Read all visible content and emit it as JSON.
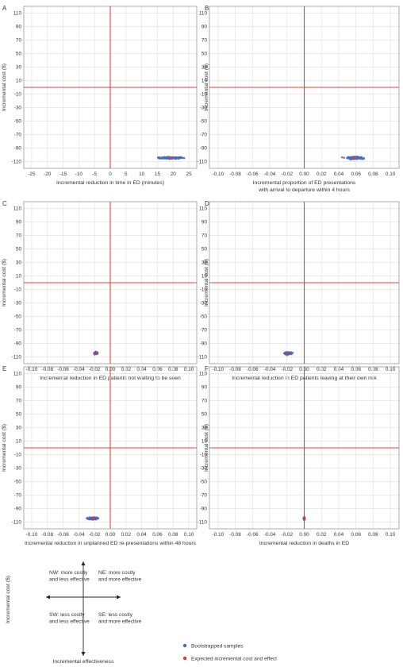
{
  "colors": {
    "sample": "#4a67c8",
    "expected": "#d63a3a",
    "axis_line": "#e0453a",
    "grid": "#e3e3e3",
    "panel_border": "#9a9a9a",
    "text": "#333333"
  },
  "chart_data": [
    {
      "panel": "A",
      "type": "scatter",
      "xlabel": [
        "Incremental reduction in time in ED (minutes)"
      ],
      "ylabel": "Incremental cost ($)",
      "xlim": [
        -27.5,
        27.5
      ],
      "ylim": [
        -120,
        120
      ],
      "xticks": [
        -25,
        -20,
        -15,
        -10,
        -5,
        0,
        5,
        10,
        15,
        20,
        25
      ],
      "xtick_labels": [
        "-25",
        "-20",
        "-15",
        "-10",
        "-5",
        "0",
        "5",
        "10",
        "15",
        "20",
        "25"
      ],
      "yticks": [
        110,
        90,
        70,
        50,
        30,
        10,
        -10,
        -30,
        -50,
        -70,
        -90,
        -110
      ],
      "ytick_labels": [
        "110",
        "90",
        "70",
        "50",
        "30",
        "10",
        "-10",
        "-30",
        "-50",
        "-70",
        "-90",
        "-110"
      ],
      "grid": true,
      "bootstrapped_samples": {
        "center": [
          19.5,
          -104.5
        ],
        "spread": [
          4.2,
          1.3
        ]
      },
      "expected": {
        "x": 19.5,
        "y": -104.5
      }
    },
    {
      "panel": "B",
      "type": "scatter",
      "xlabel": [
        "Incremental proportion of ED presentations",
        "with arrival to departure within 4 hours"
      ],
      "ylabel": "Incremental cost ($)",
      "xlim": [
        -0.11,
        0.11
      ],
      "ylim": [
        -120,
        120
      ],
      "xticks": [
        -0.1,
        -0.08,
        -0.06,
        -0.04,
        -0.02,
        0.0,
        0.02,
        0.04,
        0.06,
        0.08,
        0.1
      ],
      "xtick_labels": [
        "-0.10",
        "-0.08",
        "-0.06",
        "-0.04",
        "-0.02",
        "0.00",
        "0.02",
        "0.04",
        "0.06",
        "0.08",
        "0.10"
      ],
      "yticks": [
        110,
        90,
        70,
        50,
        30,
        10,
        -10,
        -30,
        -50,
        -70,
        -90,
        -110
      ],
      "ytick_labels": [
        "110",
        "90",
        "70",
        "50",
        "30",
        "10",
        "-10",
        "-30",
        "-50",
        "-70",
        "-90",
        "-110"
      ],
      "grid": true,
      "bootstrapped_samples": {
        "center": [
          0.058,
          -104.5
        ],
        "spread": [
          0.009,
          1.6
        ]
      },
      "expected": {
        "x": 0.058,
        "y": -104.5
      }
    },
    {
      "panel": "C",
      "type": "scatter",
      "xlabel": [
        "Incremental reduction in ED patients not waiting to be seen"
      ],
      "ylabel": "Incremental cost ($)",
      "xlim": [
        -0.11,
        0.11
      ],
      "ylim": [
        -120,
        120
      ],
      "xticks": [
        -0.1,
        -0.08,
        -0.06,
        -0.04,
        -0.02,
        0.0,
        0.02,
        0.04,
        0.06,
        0.08,
        0.1
      ],
      "xtick_labels": [
        "-0.10",
        "-0.08",
        "-0.06",
        "-0.04",
        "-0.02",
        "0.00",
        "0.02",
        "0.04",
        "0.06",
        "0.08",
        "0.10"
      ],
      "yticks": [
        110,
        90,
        70,
        50,
        30,
        10,
        -10,
        -30,
        -50,
        -70,
        -90,
        -110
      ],
      "ytick_labels": [
        "110",
        "90",
        "70",
        "50",
        "30",
        "10",
        "-10",
        "-30",
        "-50",
        "-70",
        "-90",
        "-110"
      ],
      "grid": true,
      "bootstrapped_samples": {
        "center": [
          -0.018,
          -104.5
        ],
        "spread": [
          0.002,
          1.6
        ]
      },
      "expected": {
        "x": -0.018,
        "y": -104.5
      }
    },
    {
      "panel": "D",
      "type": "scatter",
      "xlabel": [
        "Incremental reduction in ED patients leaving at their own risk"
      ],
      "ylabel": "Incremental cost ($)",
      "xlim": [
        -0.11,
        0.11
      ],
      "ylim": [
        -120,
        120
      ],
      "xticks": [
        -0.1,
        -0.08,
        -0.06,
        -0.04,
        -0.02,
        0.0,
        0.02,
        0.04,
        0.06,
        0.08,
        0.1
      ],
      "xtick_labels": [
        "-0.10",
        "-0.08",
        "-0.06",
        "-0.04",
        "-0.02",
        "0.00",
        "0.02",
        "0.04",
        "0.06",
        "0.08",
        "0.10"
      ],
      "yticks": [
        110,
        90,
        70,
        50,
        30,
        10,
        -10,
        -30,
        -50,
        -70,
        -90,
        -110
      ],
      "ytick_labels": [
        "110",
        "90",
        "70",
        "50",
        "30",
        "10",
        "-10",
        "-30",
        "-50",
        "-70",
        "-90",
        "-110"
      ],
      "grid": true,
      "bootstrapped_samples": {
        "center": [
          -0.019,
          -104.5
        ],
        "spread": [
          0.004,
          1.6
        ]
      },
      "expected": {
        "x": -0.019,
        "y": -104.5
      }
    },
    {
      "panel": "E",
      "type": "scatter",
      "xlabel": [
        "Incremental reduction in unplanned ED re-presentations within 48 hours"
      ],
      "ylabel": "Incremental cost ($)",
      "xlim": [
        -0.11,
        0.11
      ],
      "ylim": [
        -120,
        120
      ],
      "xticks": [
        -0.1,
        -0.08,
        -0.06,
        -0.04,
        -0.02,
        0.0,
        0.02,
        0.04,
        0.06,
        0.08,
        0.1
      ],
      "xtick_labels": [
        "-0.10",
        "-0.08",
        "-0.06",
        "-0.04",
        "-0.02",
        "0.00",
        "0.02",
        "0.04",
        "0.06",
        "0.08",
        "0.10"
      ],
      "yticks": [
        110,
        90,
        70,
        50,
        30,
        10,
        -10,
        -30,
        -50,
        -70,
        -90,
        -110
      ],
      "ytick_labels": [
        "110",
        "90",
        "70",
        "50",
        "30",
        "10",
        "-10",
        "-30",
        "-50",
        "-70",
        "-90",
        "-110"
      ],
      "grid": true,
      "bootstrapped_samples": {
        "center": [
          -0.022,
          -104.5
        ],
        "spread": [
          0.006,
          1.6
        ]
      },
      "expected": {
        "x": -0.022,
        "y": -104.5
      }
    },
    {
      "panel": "F",
      "type": "scatter",
      "xlabel": [
        "Incremental reduction in deaths in ED"
      ],
      "ylabel": "Incremental cost ($)",
      "xlim": [
        -0.11,
        0.11
      ],
      "ylim": [
        -120,
        120
      ],
      "xticks": [
        -0.1,
        -0.08,
        -0.06,
        -0.04,
        -0.02,
        0.0,
        0.02,
        0.04,
        0.06,
        0.08,
        0.1
      ],
      "xtick_labels": [
        "-0.10",
        "-0.08",
        "-0.06",
        "-0.04",
        "-0.02",
        "0.00",
        "0.02",
        "0.04",
        "0.06",
        "0.08",
        "0.10"
      ],
      "yticks": [
        110,
        90,
        70,
        50,
        30,
        10,
        -10,
        -30,
        -50,
        -70,
        -90,
        -110
      ],
      "ytick_labels": [
        "110",
        "90",
        "70",
        "50",
        "30",
        "10",
        "-10",
        "-30",
        "-50",
        "-70",
        "-90",
        "-110"
      ],
      "grid": true,
      "bootstrapped_samples": {
        "center": [
          0.0,
          -104.5
        ],
        "spread": [
          0.0004,
          1.8
        ]
      },
      "expected": {
        "x": 0.0,
        "y": -104.5
      }
    }
  ],
  "key": {
    "ylabel": "Incremental cost ($)",
    "xlabel": "Incremental effectiveness",
    "nw": [
      "NW: more costly",
      "and less effective"
    ],
    "ne": [
      "NE: more costly",
      "and more effective"
    ],
    "sw": [
      "SW: less costly",
      "and less effective"
    ],
    "se": [
      "SE: less costly",
      "and more effective"
    ]
  },
  "legend": {
    "samples_label": "Bootstrapped samples",
    "expected_label": "Expected incremental cost and effect"
  }
}
